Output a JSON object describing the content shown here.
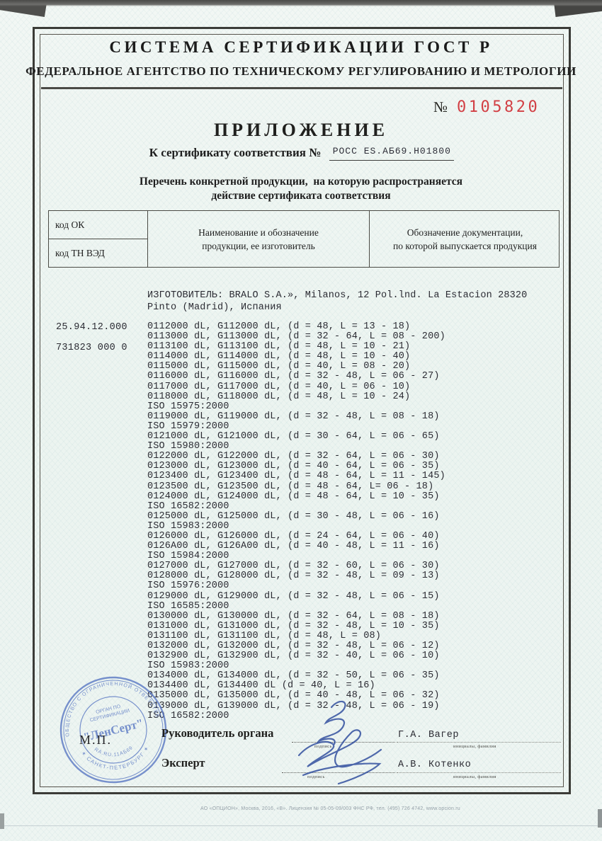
{
  "header": {
    "system_title": "СИСТЕМА СЕРТИФИКАЦИИ ГОСТ Р",
    "agency": "ФЕДЕРАЛЬНОЕ АГЕНТСТВО ПО ТЕХНИЧЕСКОМУ РЕГУЛИРОВАНИЮ И МЕТРОЛОГИИ"
  },
  "blank_number": {
    "sign": "№",
    "value": "0105820",
    "color": "#d23f44"
  },
  "doc_title": "ПРИЛОЖЕНИЕ",
  "certificate": {
    "label": "К сертификату соответствия №",
    "value": "РОСС ES.АБ69.Н01800"
  },
  "subtitle": {
    "line1": "Перечень конкретной продукции,  на которую распространяется",
    "line2": "действие сертификата соответствия"
  },
  "table": {
    "col1_row1": "код ОК",
    "col1_row2": "код ТН ВЭД",
    "col2_line1": "Наименование и обозначение",
    "col2_line2": "продукции, ее изготовитель",
    "col3_line1": "Обозначение документации,",
    "col3_line2": "по которой выпускается продукция"
  },
  "codes": {
    "ok": "25.94.12.000",
    "tn_ved": "731823 000 0"
  },
  "manufacturer": [
    "ИЗГОТОВИТЕЛЬ: BRALO S.A.», Milanos, 12 Pol.lnd. La Estacion 28320",
    "Pinto (Madrid), Испания"
  ],
  "products": [
    "0112000 dL, G112000 dL, (d = 48, L = 13 - 18)",
    "0113000 dL, G113000 dL, (d = 32 - 64, L = 08 - 200)",
    "0113100 dL, G113100 dL, (d = 48, L = 10 - 21)",
    "0114000 dL, G114000 dL, (d = 48, L = 10 - 40)",
    "0115000 dL, G115000 dL, (d = 40, L = 08 - 20)",
    "0116000 dL, G116000 dL, (d = 32 - 48, L = 06 - 27)",
    "0117000 dL, G117000 dL, (d = 40, L = 06 - 10)",
    "0118000 dL, G118000 dL, (d = 48, L = 10 - 24)",
    "ISO 15975:2000",
    "0119000 dL, G119000 dL, (d = 32 - 48, L = 08 - 18)",
    "ISO 15979:2000",
    "0121000 dL, G121000 dL, (d = 30 - 64, L = 06 - 65)",
    "ISO 15980:2000",
    "0122000 dL, G122000 dL, (d = 32 - 64, L = 06 - 30)",
    "0123000 dL, G123000 dL, (d = 40 - 64, L = 06 - 35)",
    "0123400 dL, G123400 dL, (d = 48 - 64, L = 11 - 145)",
    "0123500 dL, G123500 dL, (d = 48 - 64, L= 06 - 18)",
    "0124000 dL, G124000 dL, (d = 48 - 64, L = 10 - 35)",
    "ISO 16582:2000",
    "0125000 dL, G125000 dL, (d = 30 - 48, L = 06 - 16)",
    "ISO 15983:2000",
    "0126000 dL, G126000 dL, (d = 24 - 64, L = 06 - 40)",
    "0126A00 dL, G126A00 dL, (d = 40 - 48, L = 11 - 16)",
    "ISO 15984:2000",
    "0127000 dL, G127000 dL, (d = 32 - 60, L = 06 - 30)",
    "0128000 dL, G128000 dL, (d = 32 - 48, L = 09 - 13)",
    "ISO 15976:2000",
    "0129000 dL, G129000 dL, (d = 32 - 48, L = 06 - 15)",
    "ISO 16585:2000",
    "0130000 dL, G130000 dL, (d = 32 - 64, L = 08 - 18)",
    "0131000 dL, G131000 dL, (d = 32 - 48, L = 10 - 35)",
    "0131100 dL, G131100 dL, (d = 48, L = 08)",
    "0132000 dL, G132000 dL, (d = 32 - 48, L = 06 - 12)",
    "0132900 dL, G132900 dL, (d = 32 - 40, L = 06 - 10)",
    "ISO 15983:2000",
    "0134000 dL, G134000 dL, (d = 32 - 50, L = 06 - 35)",
    "0134400 dL, G134400 dL (d = 40, L = 16)",
    "0135000 dL, G135000 dL, (d = 40 - 48, L = 06 - 32)",
    "0139000 dL, G139000 dL, (d = 32 - 48, L = 06 - 19)",
    "ISO 16582:2000"
  ],
  "stamp": {
    "ring_top": "ОБЩЕСТВО С ОГРАНИЧЕННОЙ ОТВЕТСТВЕННОСТЬЮ",
    "ring_bottom": "✶ САНКТ-ПЕТЕРБУРГ ✶",
    "inner_line1": "ОРГАН ПО",
    "inner_line2": "СЕРТИФИКАЦИИ",
    "name": "\"ЛенСерт\"",
    "reg_number": "RA.RU.11АБ69",
    "mp": "М.П.",
    "color": "#5d7bc4"
  },
  "signatures": {
    "row1": {
      "role": "Руководитель органа",
      "sign_caption": "подпись",
      "name": "Г.А. Вагер",
      "name_caption": "инициалы, фамилия"
    },
    "row2": {
      "role": "Эксперт",
      "sign_caption": "подпись",
      "name": "А.В. Котенко",
      "name_caption": "инициалы, фамилия"
    }
  },
  "footer": "АО «ОПЦИОН», Москва, 2016, «В». Лицензия № 05-05-09/003 ФНС РФ, тел. (495) 726 4742, www.opcion.ru"
}
